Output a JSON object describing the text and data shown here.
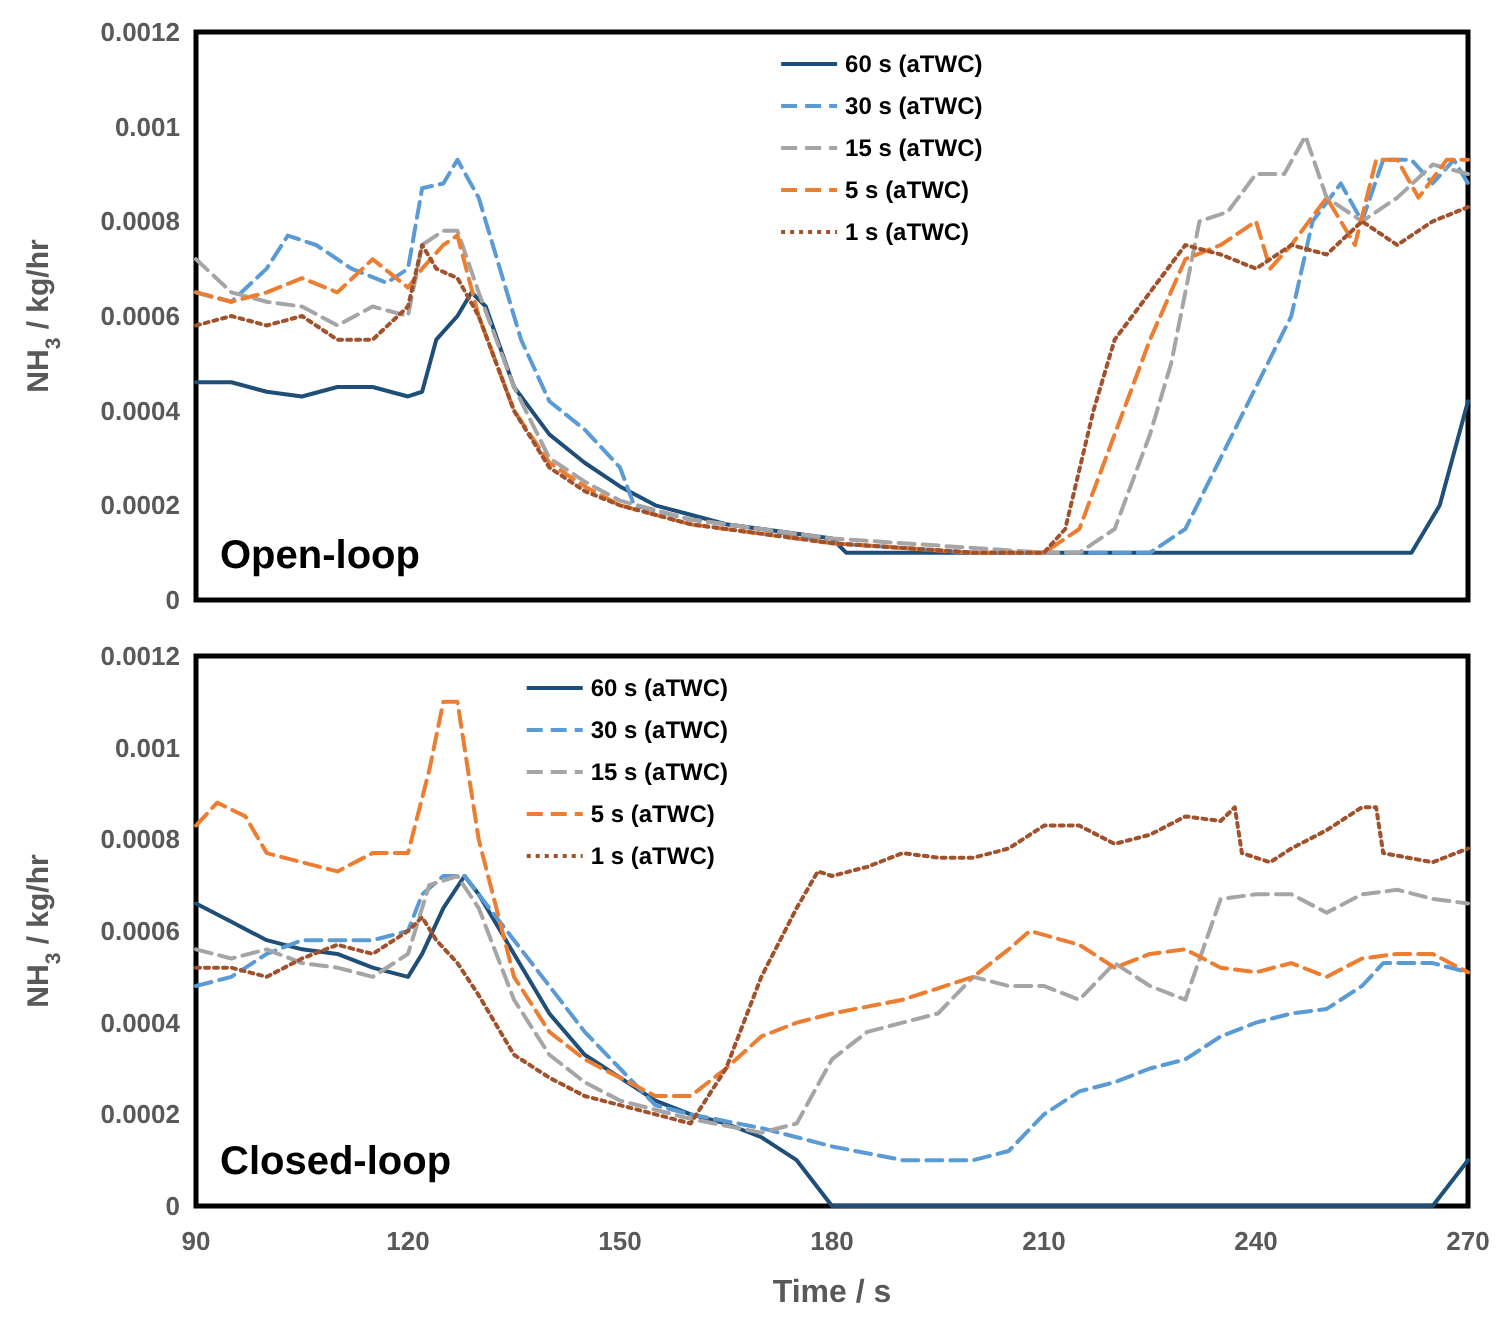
{
  "chart_data": [
    {
      "type": "line",
      "ylabel": "NH$_{3}$ / kg/hr",
      "xlim": [
        90,
        270
      ],
      "ylim": [
        0,
        0.0012
      ],
      "yticks": [
        0,
        0.0002,
        0.0004,
        0.0006,
        0.0008,
        0.001,
        0.0012
      ],
      "tick_labels": "y",
      "legend": "top",
      "grid": false,
      "annotations": [
        "Open-loop"
      ],
      "series": [
        {
          "name": "60 s (aTWC)",
          "color": "#1f4e79",
          "line_style": "solid",
          "x": [
            90,
            95,
            100,
            105,
            110,
            115,
            120,
            122,
            124,
            127,
            129,
            131,
            135,
            140,
            145,
            150,
            155,
            160,
            165,
            170,
            175,
            180,
            182,
            190,
            200,
            210,
            220,
            230,
            240,
            250,
            258,
            262,
            266,
            270
          ],
          "values": [
            0.00046,
            0.00046,
            0.00044,
            0.00043,
            0.00045,
            0.00045,
            0.00043,
            0.00044,
            0.00055,
            0.0006,
            0.00065,
            0.00062,
            0.00045,
            0.00035,
            0.00029,
            0.00024,
            0.0002,
            0.00018,
            0.00016,
            0.00015,
            0.00014,
            0.00013,
            0.0001,
            0.0001,
            0.0001,
            0.0001,
            0.0001,
            0.0001,
            0.0001,
            0.0001,
            0.0001,
            0.0001,
            0.0002,
            0.00042
          ]
        },
        {
          "name": "30 s (aTWC)",
          "color": "#5b9bd5",
          "line_style": "dashed",
          "x": [
            90,
            95,
            100,
            103,
            107,
            112,
            117,
            120,
            122,
            125,
            127,
            130,
            133,
            136,
            140,
            145,
            150,
            152,
            160,
            170,
            180,
            190,
            200,
            210,
            220,
            225,
            230,
            235,
            240,
            245,
            248,
            252,
            255,
            258,
            262,
            265,
            268,
            270
          ],
          "values": [
            0.00065,
            0.00063,
            0.0007,
            0.00077,
            0.00075,
            0.0007,
            0.00067,
            0.0007,
            0.00087,
            0.00088,
            0.00093,
            0.00085,
            0.0007,
            0.00055,
            0.00042,
            0.00036,
            0.00028,
            0.0002,
            0.00017,
            0.00015,
            0.00012,
            0.00011,
            0.0001,
            0.0001,
            0.0001,
            0.0001,
            0.00015,
            0.0003,
            0.00045,
            0.0006,
            0.0008,
            0.00088,
            0.0008,
            0.00093,
            0.00093,
            0.00088,
            0.00093,
            0.00088
          ]
        },
        {
          "name": "15 s (aTWC)",
          "color": "#a5a5a5",
          "line_style": "dashed",
          "x": [
            90,
            95,
            100,
            105,
            110,
            115,
            120,
            122,
            125,
            127,
            130,
            135,
            140,
            145,
            150,
            160,
            170,
            180,
            190,
            200,
            210,
            215,
            220,
            225,
            228,
            232,
            236,
            240,
            244,
            247,
            250,
            255,
            260,
            265,
            270
          ],
          "values": [
            0.00072,
            0.00065,
            0.00063,
            0.00062,
            0.00058,
            0.00062,
            0.0006,
            0.00075,
            0.00078,
            0.00078,
            0.00065,
            0.00045,
            0.0003,
            0.00025,
            0.00021,
            0.00017,
            0.00015,
            0.00013,
            0.00012,
            0.00011,
            0.0001,
            0.0001,
            0.00015,
            0.00035,
            0.0005,
            0.0008,
            0.00082,
            0.0009,
            0.0009,
            0.00098,
            0.00085,
            0.0008,
            0.00085,
            0.00092,
            0.0009
          ]
        },
        {
          "name": "5 s (aTWC)",
          "color": "#ed7d31",
          "line_style": "dashed",
          "x": [
            90,
            95,
            100,
            105,
            110,
            115,
            120,
            122,
            125,
            127,
            130,
            135,
            140,
            145,
            150,
            160,
            170,
            180,
            190,
            200,
            210,
            215,
            220,
            225,
            230,
            235,
            240,
            242,
            245,
            250,
            254,
            257,
            260,
            263,
            267,
            270
          ],
          "values": [
            0.00065,
            0.00063,
            0.00065,
            0.00068,
            0.00065,
            0.00072,
            0.00066,
            0.0007,
            0.00075,
            0.00077,
            0.0006,
            0.0004,
            0.00029,
            0.00024,
            0.0002,
            0.00016,
            0.00014,
            0.00012,
            0.00011,
            0.0001,
            0.0001,
            0.00015,
            0.00035,
            0.00055,
            0.00072,
            0.00075,
            0.0008,
            0.0007,
            0.00075,
            0.00085,
            0.00075,
            0.00093,
            0.00093,
            0.00085,
            0.00093,
            0.00093
          ]
        },
        {
          "name": "1 s (aTWC)",
          "color": "#a0522d",
          "line_style": "dotted",
          "x": [
            90,
            95,
            100,
            105,
            110,
            115,
            120,
            122,
            124,
            127,
            130,
            135,
            140,
            145,
            150,
            160,
            170,
            180,
            190,
            200,
            210,
            213,
            217,
            220,
            225,
            230,
            235,
            240,
            245,
            250,
            255,
            260,
            265,
            270
          ],
          "values": [
            0.00058,
            0.0006,
            0.00058,
            0.0006,
            0.00055,
            0.00055,
            0.00062,
            0.00075,
            0.0007,
            0.00068,
            0.0006,
            0.0004,
            0.00028,
            0.00023,
            0.0002,
            0.00016,
            0.00014,
            0.00012,
            0.00011,
            0.0001,
            0.0001,
            0.00015,
            0.0004,
            0.00055,
            0.00065,
            0.00075,
            0.00073,
            0.0007,
            0.00075,
            0.00073,
            0.0008,
            0.00075,
            0.0008,
            0.00083
          ]
        }
      ]
    },
    {
      "type": "line",
      "xlabel": "Time / s",
      "ylabel": "NH$_{3}$ / kg/hr",
      "xlim": [
        90,
        270
      ],
      "xticks": [
        90,
        120,
        150,
        180,
        210,
        240,
        270
      ],
      "ylim": [
        0,
        0.0012
      ],
      "yticks": [
        0,
        0.0002,
        0.0004,
        0.0006,
        0.0008,
        0.001,
        0.0012
      ],
      "legend": "top left",
      "grid": false,
      "annotations": [
        "Closed-loop"
      ],
      "series": [
        {
          "name": "60 s (aTWC)",
          "color": "#1f4e79",
          "line_style": "solid",
          "x": [
            90,
            95,
            100,
            105,
            110,
            115,
            120,
            122,
            125,
            128,
            130,
            135,
            140,
            145,
            150,
            155,
            160,
            165,
            170,
            175,
            180,
            185,
            190,
            200,
            210,
            220,
            230,
            240,
            250,
            260,
            265,
            270
          ],
          "values": [
            0.00066,
            0.00062,
            0.00058,
            0.00056,
            0.00055,
            0.00052,
            0.0005,
            0.00055,
            0.00065,
            0.00072,
            0.00068,
            0.00055,
            0.00042,
            0.00033,
            0.00028,
            0.00023,
            0.0002,
            0.00018,
            0.00015,
            0.0001,
            0,
            0,
            0,
            0,
            0,
            0,
            0,
            0,
            0,
            0,
            0,
            0.0001
          ]
        },
        {
          "name": "30 s (aTWC)",
          "color": "#5b9bd5",
          "line_style": "dashed",
          "x": [
            90,
            95,
            100,
            105,
            110,
            115,
            120,
            122,
            125,
            128,
            130,
            135,
            140,
            145,
            150,
            155,
            160,
            170,
            180,
            190,
            197,
            200,
            205,
            210,
            215,
            220,
            225,
            230,
            235,
            240,
            245,
            250,
            255,
            258,
            265,
            270
          ],
          "values": [
            0.00048,
            0.0005,
            0.00055,
            0.00058,
            0.00058,
            0.00058,
            0.0006,
            0.00068,
            0.00072,
            0.00072,
            0.00068,
            0.00058,
            0.00048,
            0.00038,
            0.0003,
            0.00022,
            0.0002,
            0.00017,
            0.00013,
            0.0001,
            0.0001,
            0.0001,
            0.00012,
            0.0002,
            0.00025,
            0.00027,
            0.0003,
            0.00032,
            0.00037,
            0.0004,
            0.00042,
            0.00043,
            0.00048,
            0.00053,
            0.00053,
            0.00051
          ]
        },
        {
          "name": "15 s (aTWC)",
          "color": "#a5a5a5",
          "line_style": "dashed",
          "x": [
            90,
            95,
            100,
            105,
            110,
            115,
            120,
            123,
            127,
            130,
            135,
            140,
            145,
            150,
            160,
            170,
            175,
            180,
            185,
            190,
            195,
            200,
            205,
            210,
            215,
            220,
            225,
            230,
            235,
            240,
            245,
            250,
            255,
            260,
            265,
            270
          ],
          "values": [
            0.00056,
            0.00054,
            0.00056,
            0.00053,
            0.00052,
            0.0005,
            0.00055,
            0.0007,
            0.00072,
            0.00065,
            0.00045,
            0.00033,
            0.00027,
            0.00023,
            0.00019,
            0.00016,
            0.00018,
            0.00032,
            0.00038,
            0.0004,
            0.00042,
            0.0005,
            0.00048,
            0.00048,
            0.00045,
            0.00053,
            0.00048,
            0.00045,
            0.00067,
            0.00068,
            0.00068,
            0.00064,
            0.00068,
            0.00069,
            0.00067,
            0.00066
          ]
        },
        {
          "name": "5 s (aTWC)",
          "color": "#ed7d31",
          "line_style": "dashed",
          "x": [
            90,
            93,
            97,
            100,
            105,
            110,
            115,
            120,
            123,
            125,
            127,
            130,
            135,
            140,
            145,
            150,
            155,
            160,
            165,
            170,
            175,
            180,
            190,
            200,
            205,
            208,
            215,
            220,
            225,
            230,
            235,
            240,
            245,
            250,
            255,
            260,
            265,
            270
          ],
          "values": [
            0.00083,
            0.00088,
            0.00085,
            0.00077,
            0.00075,
            0.00073,
            0.00077,
            0.00077,
            0.00095,
            0.0011,
            0.0011,
            0.0008,
            0.0005,
            0.00038,
            0.00032,
            0.00028,
            0.00024,
            0.00024,
            0.0003,
            0.00037,
            0.0004,
            0.00042,
            0.00045,
            0.0005,
            0.00056,
            0.0006,
            0.00057,
            0.00052,
            0.00055,
            0.00056,
            0.00052,
            0.00051,
            0.00053,
            0.0005,
            0.00054,
            0.00055,
            0.00055,
            0.00051
          ]
        },
        {
          "name": "1 s (aTWC)",
          "color": "#a0522d",
          "line_style": "dotted",
          "x": [
            90,
            95,
            100,
            105,
            110,
            115,
            120,
            122,
            124,
            127,
            130,
            135,
            140,
            145,
            150,
            155,
            160,
            165,
            170,
            175,
            178,
            180,
            185,
            190,
            195,
            200,
            205,
            210,
            215,
            220,
            225,
            230,
            235,
            237,
            238,
            242,
            245,
            250,
            255,
            257,
            258,
            265,
            270
          ],
          "values": [
            0.00052,
            0.00052,
            0.0005,
            0.00054,
            0.00057,
            0.00055,
            0.0006,
            0.00063,
            0.00058,
            0.00053,
            0.00046,
            0.00033,
            0.00028,
            0.00024,
            0.00022,
            0.0002,
            0.00018,
            0.0003,
            0.0005,
            0.00065,
            0.00073,
            0.00072,
            0.00074,
            0.00077,
            0.00076,
            0.00076,
            0.00078,
            0.00083,
            0.00083,
            0.00079,
            0.00081,
            0.00085,
            0.00084,
            0.00087,
            0.00077,
            0.00075,
            0.00078,
            0.00082,
            0.00087,
            0.00087,
            0.00077,
            0.00075,
            0.00078
          ]
        }
      ]
    }
  ]
}
